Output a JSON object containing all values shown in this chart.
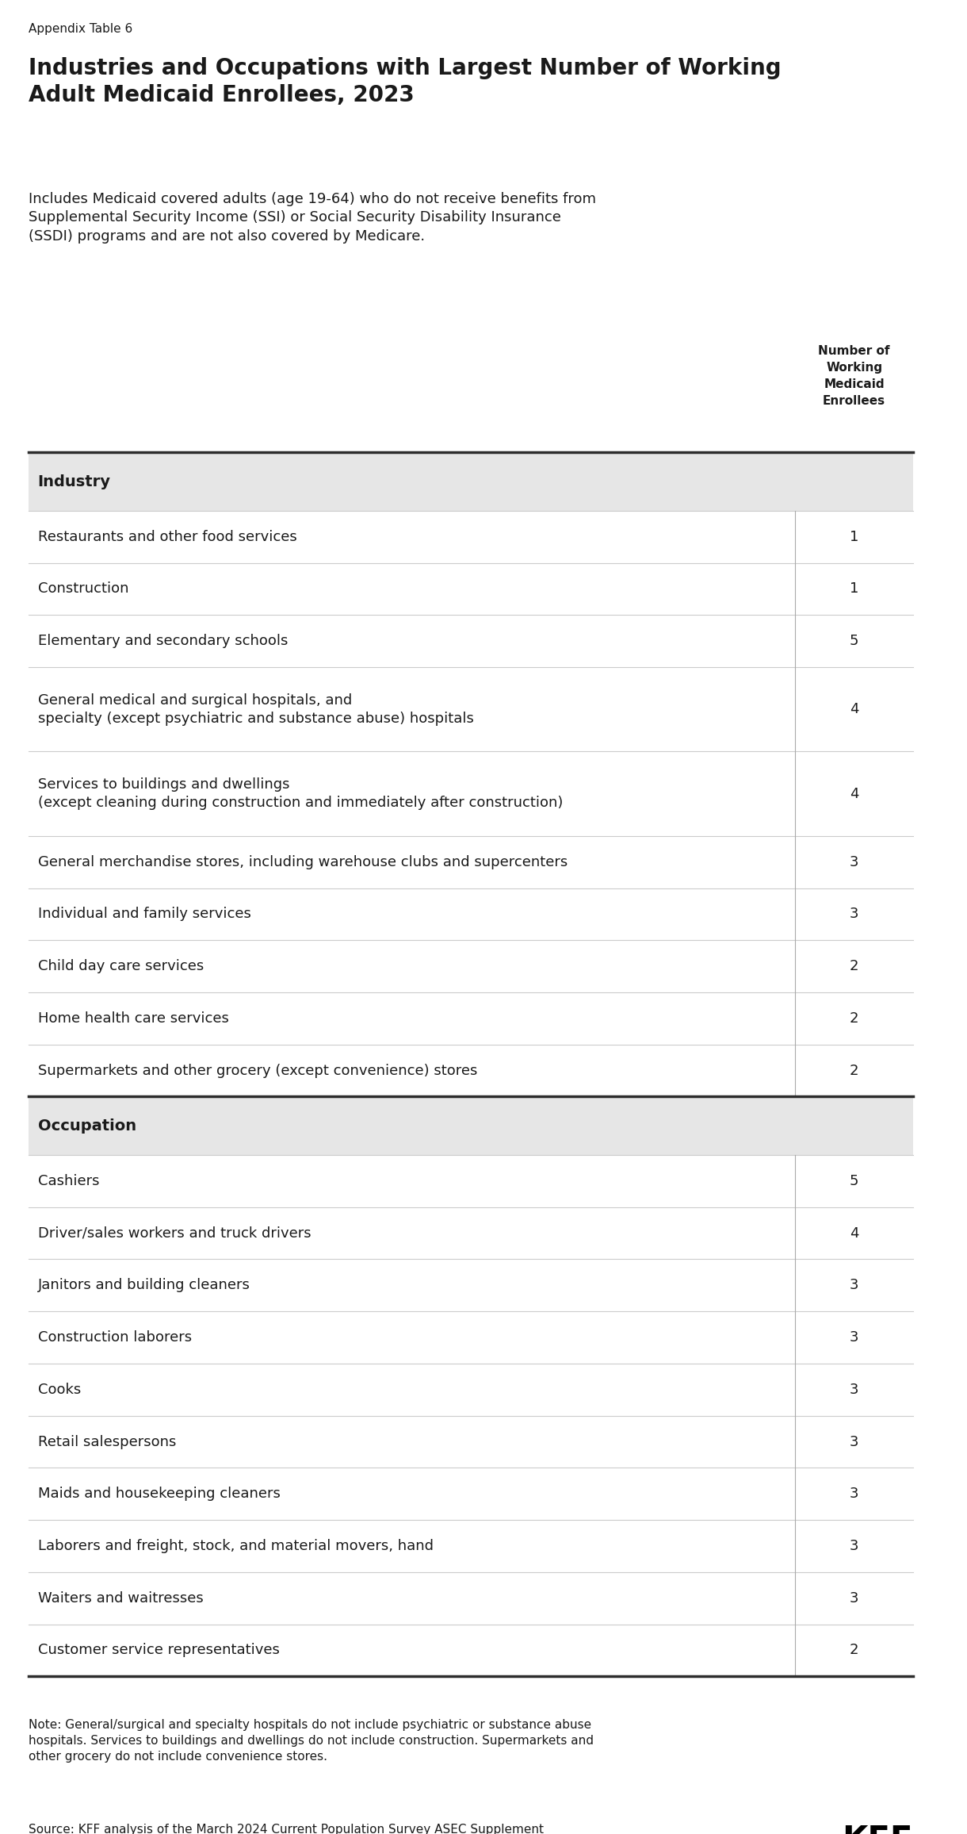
{
  "appendix_label": "Appendix Table 6",
  "title": "Industries and Occupations with Largest Number of Working\nAdult Medicaid Enrollees, 2023",
  "subtitle": "Includes Medicaid covered adults (age 19-64) who do not receive benefits from\nSupplemental Security Income (SSI) or Social Security Disability Insurance\n(SSDI) programs and are not also covered by Medicare.",
  "col_header_display": "Number of\nWorking\nMedicaid\nEnrollees",
  "industry_header": "Industry",
  "occupation_header": "Occupation",
  "industry_rows": [
    {
      "label": "Restaurants and other food services",
      "value": "1",
      "multiline": false
    },
    {
      "label": "Construction",
      "value": "1",
      "multiline": false
    },
    {
      "label": "Elementary and secondary schools",
      "value": "5",
      "multiline": false
    },
    {
      "label": "General medical and surgical hospitals, and\nspecialty (except psychiatric and substance abuse) hospitals",
      "value": "4",
      "multiline": true
    },
    {
      "label": "Services to buildings and dwellings\n(except cleaning during construction and immediately after construction)",
      "value": "4",
      "multiline": true
    },
    {
      "label": "General merchandise stores, including warehouse clubs and supercenters",
      "value": "3",
      "multiline": false
    },
    {
      "label": "Individual and family services",
      "value": "3",
      "multiline": false
    },
    {
      "label": "Child day care services",
      "value": "2",
      "multiline": false
    },
    {
      "label": "Home health care services",
      "value": "2",
      "multiline": false
    },
    {
      "label": "Supermarkets and other grocery (except convenience) stores",
      "value": "2",
      "multiline": false
    }
  ],
  "occupation_rows": [
    {
      "label": "Cashiers",
      "value": "5",
      "multiline": false
    },
    {
      "label": "Driver/sales workers and truck drivers",
      "value": "4",
      "multiline": false
    },
    {
      "label": "Janitors and building cleaners",
      "value": "3",
      "multiline": false
    },
    {
      "label": "Construction laborers",
      "value": "3",
      "multiline": false
    },
    {
      "label": "Cooks",
      "value": "3",
      "multiline": false
    },
    {
      "label": "Retail salespersons",
      "value": "3",
      "multiline": false
    },
    {
      "label": "Maids and housekeeping cleaners",
      "value": "3",
      "multiline": false
    },
    {
      "label": "Laborers and freight, stock, and material movers, hand",
      "value": "3",
      "multiline": false
    },
    {
      "label": "Waiters and waitresses",
      "value": "3",
      "multiline": false
    },
    {
      "label": "Customer service representatives",
      "value": "2",
      "multiline": false
    }
  ],
  "note": "Note: General/surgical and specialty hospitals do not include psychiatric or substance abuse\nhospitals. Services to buildings and dwellings do not include construction. Supermarkets and\nother grocery do not include convenience stores.",
  "source": "Source: KFF analysis of the March 2024 Current Population Survey ASEC Supplement",
  "kff_logo": "KFF",
  "bg_color": "#ffffff",
  "header_bg_color": "#e6e6e6",
  "border_color": "#2d2d2d",
  "row_line_color": "#cccccc",
  "col_sep_color": "#aaaaaa",
  "text_color": "#1a1a1a",
  "appendix_fontsize": 11,
  "title_fontsize": 20,
  "subtitle_fontsize": 13,
  "header_fontsize": 14,
  "row_fontsize": 13,
  "note_fontsize": 11,
  "source_fontsize": 11
}
